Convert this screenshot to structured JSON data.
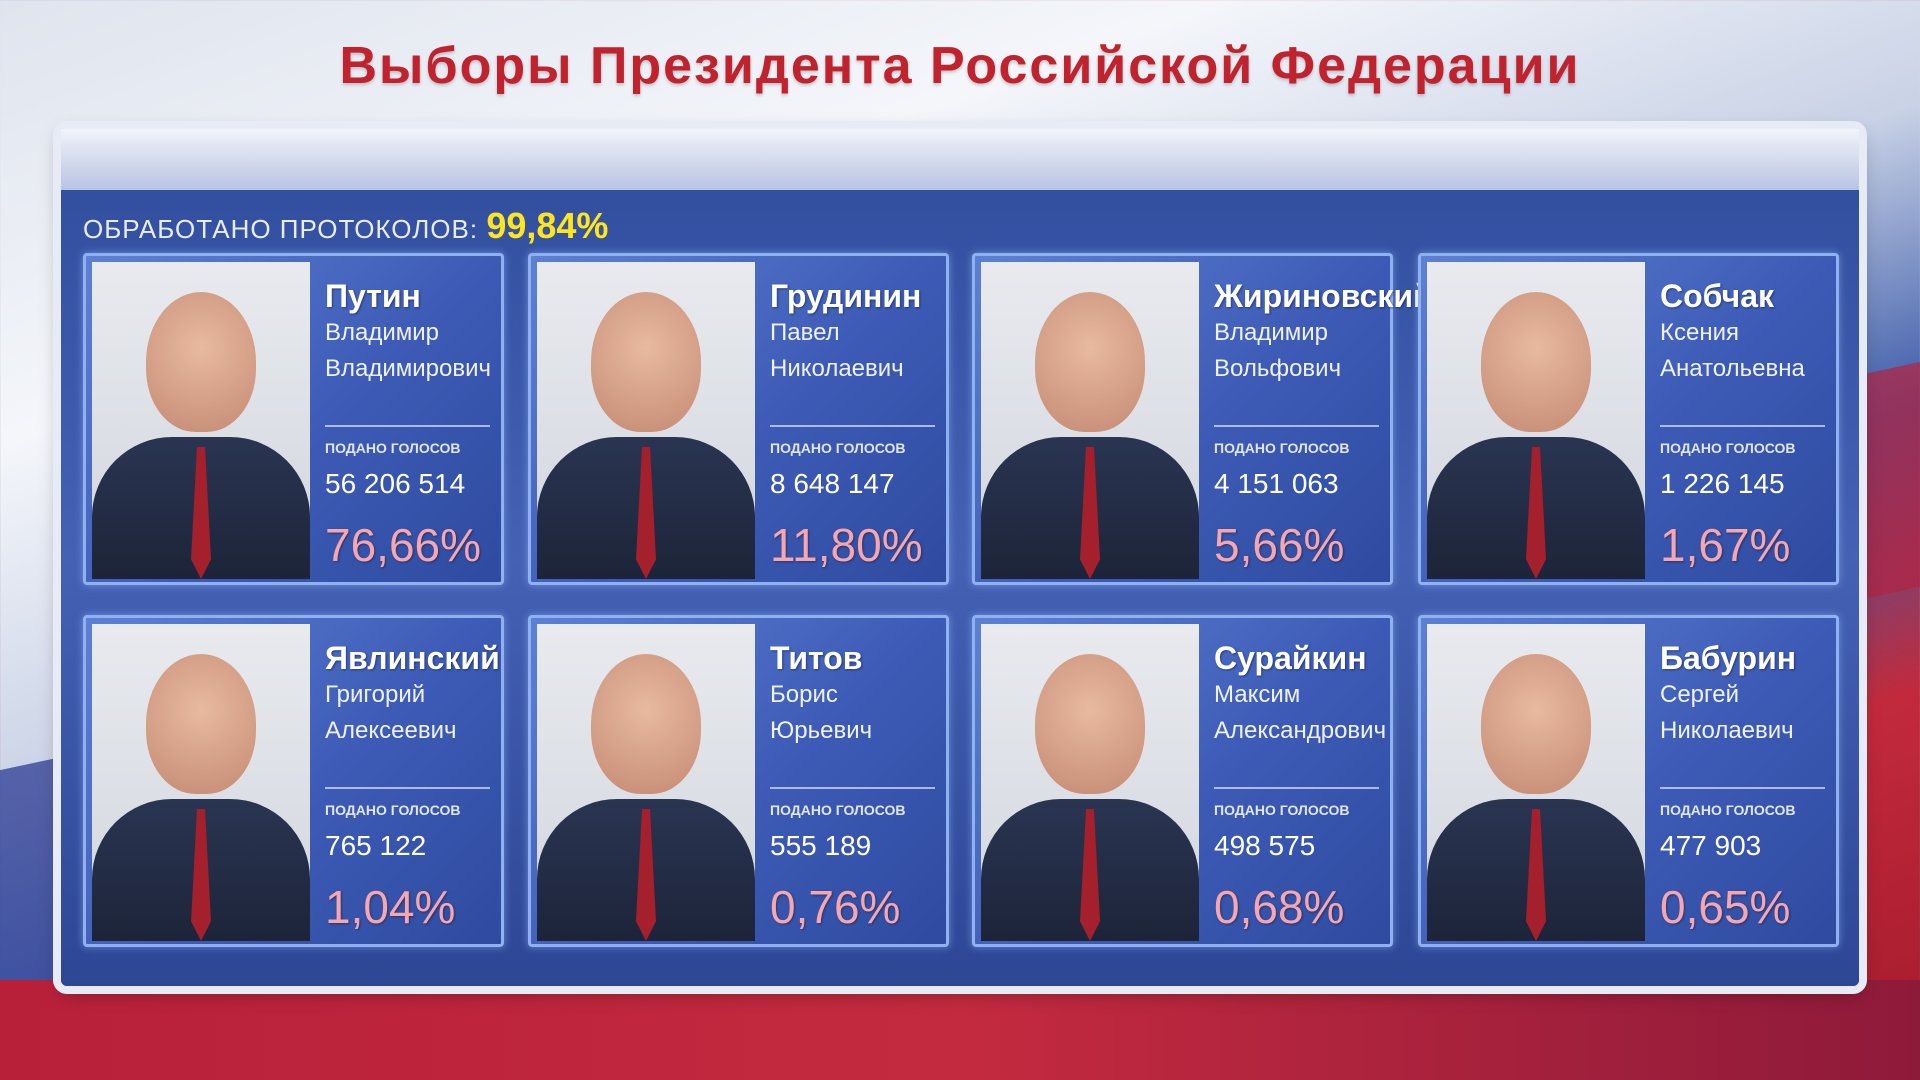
{
  "title": "Выборы Президента Российской Федерации",
  "processed": {
    "label": "ОБРАБОТАНО ПРОТОКОЛОВ:",
    "value": "99,84%"
  },
  "votes_label": "ПОДАНО ГОЛОСОВ",
  "colors": {
    "title": "#c0222e",
    "processed_value": "#ffe61a",
    "percent": "#f7a6ae",
    "panel": "#3d5bb6"
  },
  "candidates": [
    {
      "surname": "Путин",
      "first_name": "Владимир",
      "patronymic": "Владимирович",
      "votes": "56 206 514",
      "percent": "76,66%"
    },
    {
      "surname": "Грудинин",
      "first_name": "Павел",
      "patronymic": "Николаевич",
      "votes": "8 648 147",
      "percent": "11,80%"
    },
    {
      "surname": "Жириновский",
      "first_name": "Владимир",
      "patronymic": "Вольфович",
      "votes": "4 151 063",
      "percent": "5,66%"
    },
    {
      "surname": "Собчак",
      "first_name": "Ксения",
      "patronymic": "Анатольевна",
      "votes": "1 226 145",
      "percent": "1,67%"
    },
    {
      "surname": "Явлинский",
      "first_name": "Григорий",
      "patronymic": "Алексеевич",
      "votes": "765 122",
      "percent": "1,04%"
    },
    {
      "surname": "Титов",
      "first_name": "Борис",
      "patronymic": "Юрьевич",
      "votes": "555 189",
      "percent": "0,76%"
    },
    {
      "surname": "Сурайкин",
      "first_name": "Максим",
      "patronymic": "Александрович",
      "votes": "498 575",
      "percent": "0,68%"
    },
    {
      "surname": "Бабурин",
      "first_name": "Сергей",
      "patronymic": "Николаевич",
      "votes": "477 903",
      "percent": "0,65%"
    }
  ]
}
